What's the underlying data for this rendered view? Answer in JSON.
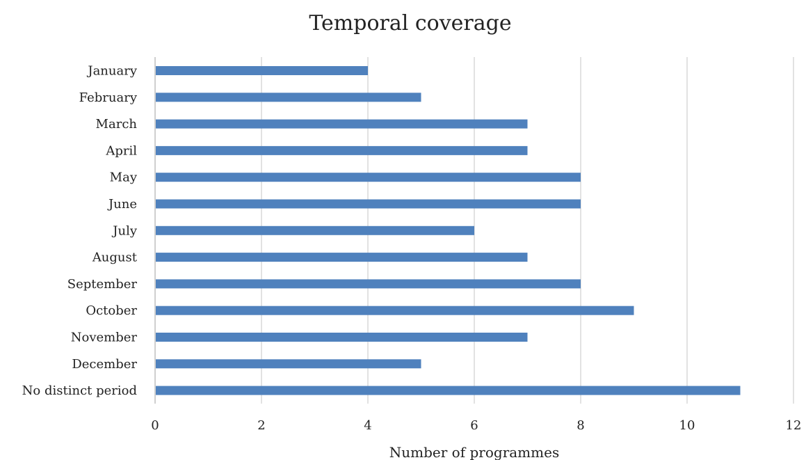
{
  "chart_data": {
    "type": "bar",
    "orientation": "horizontal",
    "title": "Temporal coverage",
    "xlabel": "Number of programmes",
    "ylabel": "",
    "categories": [
      "January",
      "February",
      "March",
      "April",
      "May",
      "June",
      "July",
      "August",
      "September",
      "October",
      "November",
      "December",
      "No distinct period"
    ],
    "values": [
      4,
      5,
      7,
      7,
      8,
      8,
      6,
      7,
      8,
      9,
      7,
      5,
      11
    ],
    "xlim": [
      0,
      12
    ],
    "xticks": [
      0,
      2,
      4,
      6,
      8,
      10,
      12
    ],
    "xtick_labels": [
      "0",
      "2",
      "4",
      "6",
      "8",
      "10",
      "12"
    ],
    "grid": "vertical",
    "legend": "none",
    "colors": {
      "bar": "#4f81bd",
      "grid": "#d9d9d9",
      "text": "#222222"
    }
  }
}
